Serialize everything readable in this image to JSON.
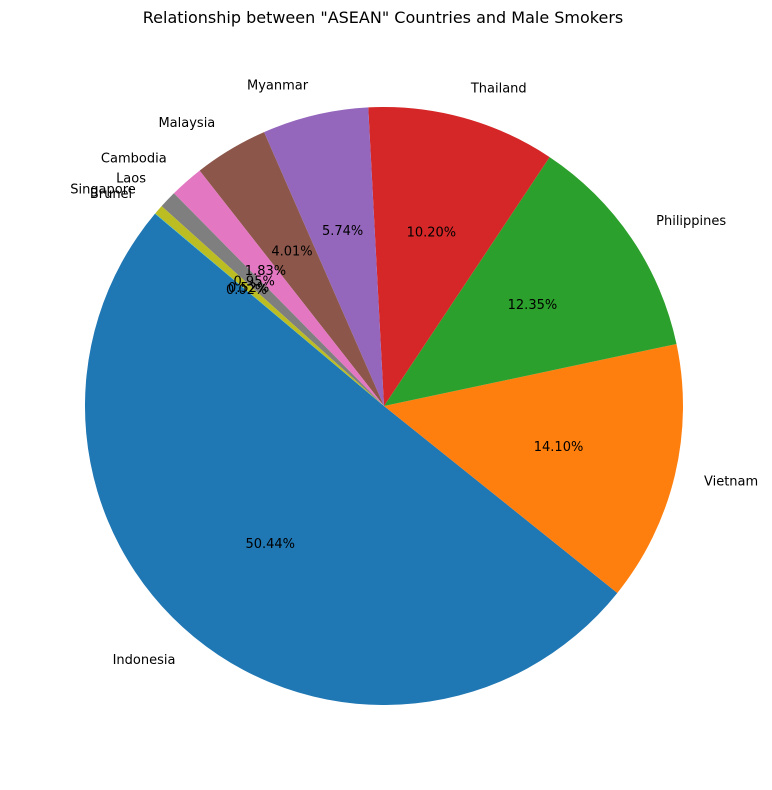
{
  "chart_data": {
    "type": "pie",
    "title": "Relationship between \"ASEAN\" Countries and Male Smokers",
    "start_angle_deg": 140,
    "direction": "counterclockwise",
    "slices": [
      {
        "label": "Indonesia",
        "value": 50.44,
        "pct_text": "50.44%",
        "color": "#1f77b4"
      },
      {
        "label": "Vietnam",
        "value": 14.1,
        "pct_text": "14.10%",
        "color": "#ff7f0e"
      },
      {
        "label": "Philippines",
        "value": 12.35,
        "pct_text": "12.35%",
        "color": "#2ca02c"
      },
      {
        "label": "Thailand",
        "value": 10.2,
        "pct_text": "10.20%",
        "color": "#d62728"
      },
      {
        "label": "Myanmar",
        "value": 5.74,
        "pct_text": "5.74%",
        "color": "#9467bd"
      },
      {
        "label": "Malaysia",
        "value": 4.01,
        "pct_text": "4.01%",
        "color": "#8c564b"
      },
      {
        "label": "Cambodia",
        "value": 1.83,
        "pct_text": "1.83%",
        "color": "#e377c2"
      },
      {
        "label": "Laos",
        "value": 0.95,
        "pct_text": "0.95%",
        "color": "#7f7f7f"
      },
      {
        "label": "Singapore",
        "value": 0.52,
        "pct_text": "0.52%",
        "color": "#bcbd22"
      },
      {
        "label": "Brunei",
        "value": 0.02,
        "pct_text": "0.02%",
        "color": "#17becf"
      }
    ]
  }
}
